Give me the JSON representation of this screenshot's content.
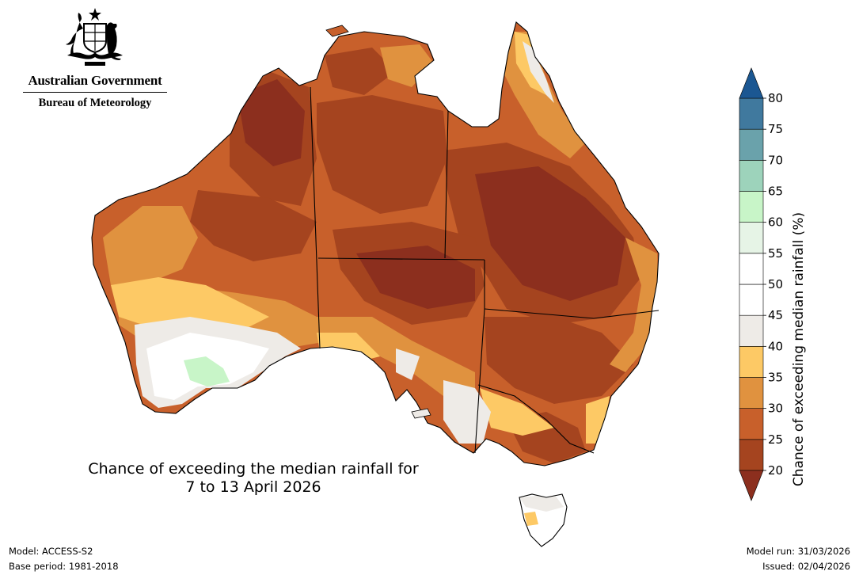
{
  "branding": {
    "line1": "Australian Government",
    "line2": "Bureau of Meteorology"
  },
  "title": {
    "line1": "Chance of exceeding the median rainfall for",
    "line2": "7 to 13 April 2026"
  },
  "footer": {
    "model": "Model: ACCESS-S2",
    "base_period": "Base period: 1981-2018",
    "model_run": "Model run: 31/03/2026",
    "issued": "Issued: 02/04/2026"
  },
  "legend": {
    "label": "Chance of exceeding median rainfall (%)",
    "ticks": [
      "20",
      "25",
      "30",
      "35",
      "40",
      "45",
      "50",
      "55",
      "60",
      "65",
      "70",
      "75",
      "80"
    ],
    "bands": [
      {
        "from": 20,
        "to": 25,
        "color": "#a5441f"
      },
      {
        "from": 25,
        "to": 30,
        "color": "#c8602b"
      },
      {
        "from": 30,
        "to": 35,
        "color": "#e0923f"
      },
      {
        "from": 35,
        "to": 40,
        "color": "#fdc965"
      },
      {
        "from": 40,
        "to": 45,
        "color": "#eeebe7"
      },
      {
        "from": 45,
        "to": 50,
        "color": "#ffffff"
      },
      {
        "from": 50,
        "to": 55,
        "color": "#ffffff"
      },
      {
        "from": 55,
        "to": 60,
        "color": "#e6f4e6"
      },
      {
        "from": 60,
        "to": 65,
        "color": "#c8f5c8"
      },
      {
        "from": 65,
        "to": 70,
        "color": "#9dd3bb"
      },
      {
        "from": 70,
        "to": 75,
        "color": "#6aa2ab"
      },
      {
        "from": 75,
        "to": 80,
        "color": "#40799e"
      }
    ],
    "under_color": "#8c2f1e",
    "over_color": "#1b5792"
  },
  "map_colors": {
    "darkest": "#8c2f1e",
    "dark": "#a5441f",
    "mid": "#c8602b",
    "light": "#e0923f",
    "yellow": "#fdc965",
    "grey": "#eeebe7",
    "white": "#ffffff",
    "green": "#c8f5c8",
    "border": "#000000"
  }
}
